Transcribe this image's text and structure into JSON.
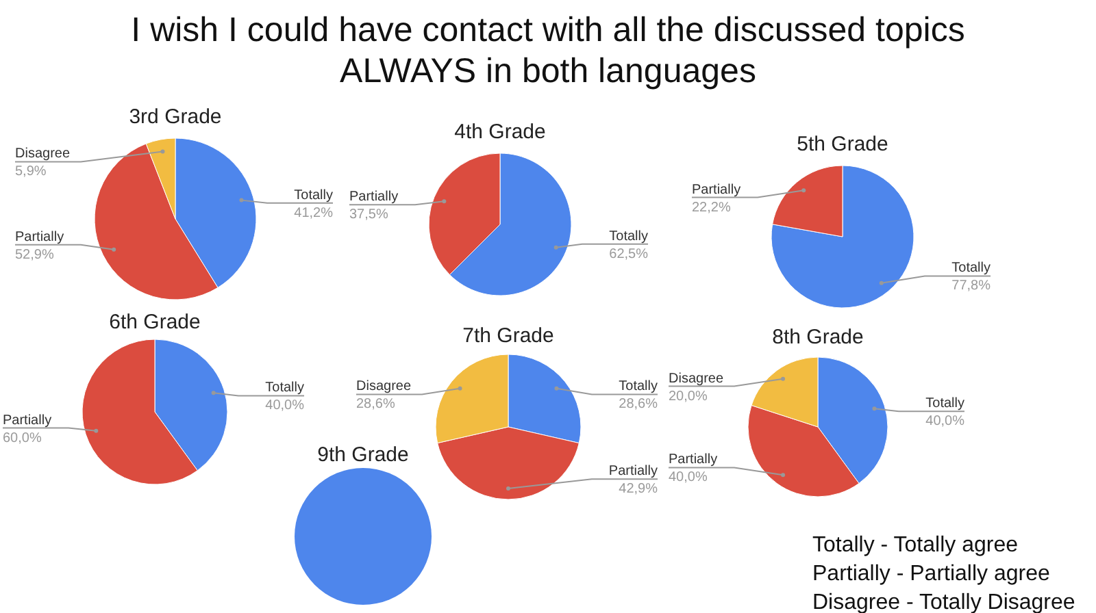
{
  "chart_data": [
    {
      "type": "other",
      "title": "I wish I could have contact with all the discussed topics\nALWAYS in both languages"
    },
    {
      "type": "pie",
      "title": "3rd Grade",
      "categories": [
        "Totally",
        "Partially",
        "Disagree"
      ],
      "values": [
        41.2,
        52.9,
        5.9
      ],
      "value_labels": [
        "41,2%",
        "52,9%",
        "5,9%"
      ],
      "colors": [
        "#4e86ec",
        "#db4c3f",
        "#f2bc41"
      ]
    },
    {
      "type": "pie",
      "title": "4th Grade",
      "categories": [
        "Totally",
        "Partially"
      ],
      "values": [
        62.5,
        37.5
      ],
      "value_labels": [
        "62,5%",
        "37,5%"
      ],
      "colors": [
        "#4e86ec",
        "#db4c3f"
      ]
    },
    {
      "type": "pie",
      "title": "5th Grade",
      "categories": [
        "Totally",
        "Partially"
      ],
      "values": [
        77.8,
        22.2
      ],
      "value_labels": [
        "77,8%",
        "22,2%"
      ],
      "colors": [
        "#4e86ec",
        "#db4c3f"
      ]
    },
    {
      "type": "pie",
      "title": "6th Grade",
      "categories": [
        "Totally",
        "Partially"
      ],
      "values": [
        40.0,
        60.0
      ],
      "value_labels": [
        "40,0%",
        "60,0%"
      ],
      "colors": [
        "#4e86ec",
        "#db4c3f"
      ]
    },
    {
      "type": "pie",
      "title": "7th Grade",
      "categories": [
        "Totally",
        "Partially",
        "Disagree"
      ],
      "values": [
        28.6,
        42.9,
        28.6
      ],
      "value_labels": [
        "28,6%",
        "42,9%",
        "28,6%"
      ],
      "colors": [
        "#4e86ec",
        "#db4c3f",
        "#f2bc41"
      ]
    },
    {
      "type": "pie",
      "title": "8th Grade",
      "categories": [
        "Totally",
        "Partially",
        "Disagree"
      ],
      "values": [
        40.0,
        40.0,
        20.0
      ],
      "value_labels": [
        "40,0%",
        "40,0%",
        "20,0%"
      ],
      "colors": [
        "#4e86ec",
        "#db4c3f",
        "#f2bc41"
      ]
    },
    {
      "type": "pie",
      "title": "9th Grade",
      "categories": [
        null
      ],
      "values": [
        100
      ],
      "colors": [
        "#4e86ec"
      ]
    },
    {
      "type": "other",
      "annotations": [
        "Totally - Totally agree",
        "Partially - Partially agree",
        "Disagree - Totally Disagree"
      ]
    }
  ]
}
